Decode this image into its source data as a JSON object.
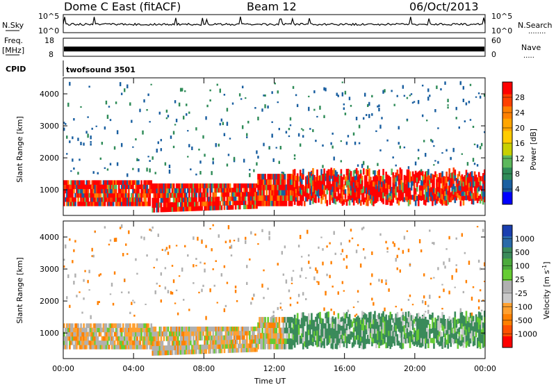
{
  "header": {
    "title": "Dome C East (fitACF)",
    "beam": "Beam 12",
    "date": "06/Oct/2013"
  },
  "strip_nsky": {
    "label": "N.Sky",
    "ticks_left": [
      "10^5",
      "10^0"
    ],
    "ticks_right": [
      "10^5",
      "10^0"
    ],
    "right_label": "N.Search",
    "right_dots": "........"
  },
  "strip_freq": {
    "label_line1": "Freq.",
    "label_line2": "[MHz]",
    "ticks_left": [
      "18",
      "8"
    ],
    "ticks_right": [
      "60",
      "0"
    ],
    "right_label": "Nave",
    "right_dots": "....."
  },
  "cpid": {
    "label": "CPID",
    "value": "twofsound 3501"
  },
  "chart_data": [
    {
      "type": "heatmap",
      "name": "power",
      "ylabel": "Slant Range [km]",
      "yticks": [
        "4000",
        "3000",
        "2000",
        "1000"
      ],
      "ylim": [
        200,
        4500
      ],
      "colorbar_label": "Power [dB]",
      "colorbar_ticks": [
        "28",
        "24",
        "20",
        "16",
        "12",
        "8",
        "4"
      ],
      "colorbar_colors": [
        "#ff0000",
        "#ff4000",
        "#ff8000",
        "#ffa500",
        "#ffcc00",
        "#c8d000",
        "#5cb85c",
        "#2e8b57",
        "#1a5fa0",
        "#0000ff"
      ]
    },
    {
      "type": "heatmap",
      "name": "velocity",
      "ylabel": "Slant Range [km]",
      "yticks": [
        "4000",
        "3000",
        "2000",
        "1000"
      ],
      "ylim": [
        200,
        4500
      ],
      "colorbar_label": "Velocity [m s",
      "colorbar_label_sup": "-1",
      "colorbar_label_end": "]",
      "colorbar_ticks": [
        "1000",
        "500",
        "100",
        "25",
        "-25",
        "-100",
        "-500",
        "-1000"
      ],
      "colorbar_colors": [
        "#1a3fb0",
        "#2a6aa8",
        "#3a8a5a",
        "#4caa3c",
        "#66cc33",
        "#b0b0b0",
        "#c8c8c8",
        "#ffa030",
        "#ff8000",
        "#ff5000",
        "#ff0000"
      ],
      "xlabel": "Time UT",
      "xticks": [
        "00:00",
        "04:00",
        "08:00",
        "12:00",
        "16:00",
        "20:00",
        "00:00"
      ]
    }
  ]
}
